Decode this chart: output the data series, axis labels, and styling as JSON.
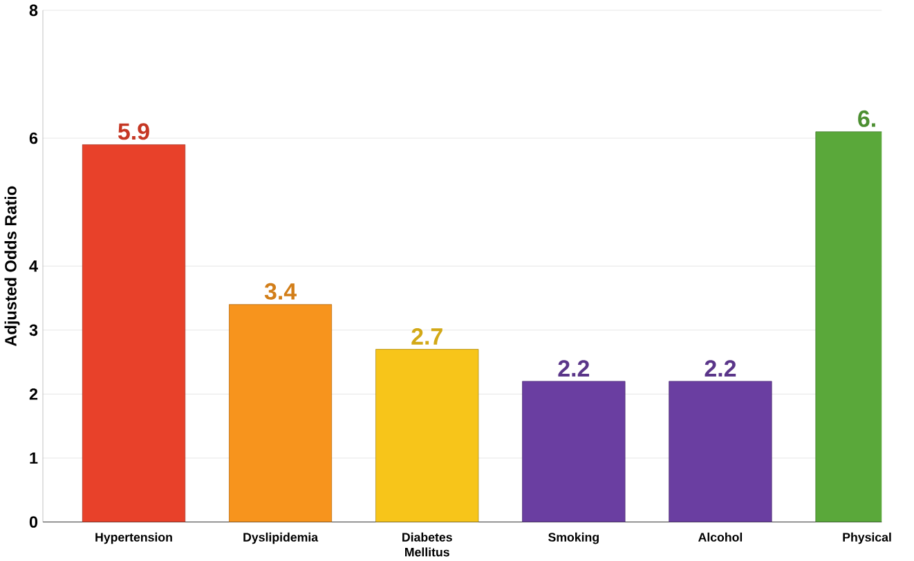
{
  "chart_data": {
    "type": "bar",
    "ylabel": "Adjusted Odds Ratio",
    "categories": [
      "Hypertension",
      "Dyslipidemia",
      "Diabetes Mellitus",
      "Smoking",
      "Alcohol",
      "Physical"
    ],
    "values": [
      5.9,
      3.4,
      2.7,
      2.2,
      2.2,
      6.1
    ],
    "value_labels": [
      "5.9",
      "3.4",
      "2.7",
      "2.2",
      "2.2",
      "6."
    ],
    "colors": [
      "#e8412a",
      "#f7941d",
      "#f7c51a",
      "#6a3ea1",
      "#6a3ea1",
      "#5aa83a"
    ],
    "ylim": [
      0,
      8
    ],
    "yticks": [
      0,
      1,
      2,
      3,
      4,
      6,
      8
    ],
    "grid": "y"
  }
}
